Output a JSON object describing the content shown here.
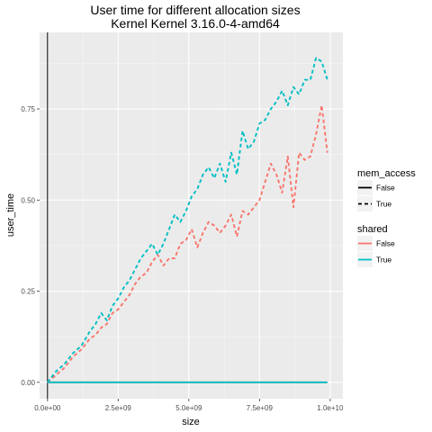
{
  "chart_data": {
    "type": "line",
    "title": "User time for different allocation sizes",
    "subtitle": "Kernel Kernel 3.16.0-4-amd64",
    "xlabel": "size",
    "ylabel": "user_time",
    "xlim": [
      -280000000.0,
      10450000000.0
    ],
    "ylim": [
      -0.045,
      0.96
    ],
    "x_ticks": [
      0,
      2500000000,
      5000000000,
      7500000000,
      10000000000
    ],
    "x_tick_labels": [
      "0.0e+00",
      "2.5e+09",
      "5.0e+09",
      "7.5e+09",
      "1.0e+10"
    ],
    "y_ticks": [
      0,
      0.25,
      0.5,
      0.75
    ],
    "y_tick_labels": [
      "0.00",
      "0.25",
      "0.50",
      "0.75"
    ],
    "grid": true,
    "legend_position": "right",
    "legends": [
      {
        "title": "mem_access",
        "entries": [
          {
            "label": "False",
            "linetype": "solid"
          },
          {
            "label": "True",
            "linetype": "dashed"
          }
        ]
      },
      {
        "title": "shared",
        "entries": [
          {
            "label": "False",
            "color": "#F8766D"
          },
          {
            "label": "True",
            "color": "#00BFC4"
          }
        ]
      }
    ],
    "series": [
      {
        "mem_access": "False",
        "shared": "False",
        "color": "#F8766D",
        "linetype": "solid",
        "x": [
          0,
          9900000000
        ],
        "y": [
          0,
          0
        ]
      },
      {
        "mem_access": "False",
        "shared": "True",
        "color": "#00BFC4",
        "linetype": "solid",
        "x": [
          0,
          9900000000
        ],
        "y": [
          0,
          0
        ]
      },
      {
        "mem_access": "True",
        "shared": "False",
        "color": "#F8766D",
        "linetype": "dashed",
        "x": [
          0,
          300000000,
          600000000,
          900000000,
          1200000000,
          1500000000,
          1700000000,
          1900000000,
          2100000000,
          2300000000,
          2500000000,
          2700000000,
          2900000000,
          3100000000,
          3300000000,
          3500000000,
          3700000000,
          3900000000,
          4100000000,
          4300000000,
          4500000000,
          4700000000,
          4900000000,
          5100000000,
          5300000000,
          5500000000,
          5700000000,
          5900000000,
          6100000000,
          6300000000,
          6500000000,
          6700000000,
          6900000000,
          7100000000,
          7300000000,
          7500000000,
          7700000000,
          7900000000,
          8100000000,
          8300000000,
          8500000000,
          8700000000,
          8900000000,
          9100000000,
          9300000000,
          9500000000,
          9700000000,
          9900000000
        ],
        "y": [
          0,
          0.02,
          0.04,
          0.07,
          0.09,
          0.12,
          0.13,
          0.15,
          0.16,
          0.19,
          0.2,
          0.22,
          0.24,
          0.27,
          0.29,
          0.3,
          0.33,
          0.35,
          0.32,
          0.34,
          0.34,
          0.38,
          0.39,
          0.42,
          0.37,
          0.41,
          0.44,
          0.43,
          0.41,
          0.43,
          0.46,
          0.4,
          0.47,
          0.46,
          0.48,
          0.5,
          0.55,
          0.6,
          0.57,
          0.52,
          0.62,
          0.48,
          0.63,
          0.61,
          0.62,
          0.68,
          0.76,
          0.63
        ]
      },
      {
        "mem_access": "True",
        "shared": "True",
        "color": "#00BFC4",
        "linetype": "dashed",
        "x": [
          0,
          300000000,
          600000000,
          900000000,
          1200000000,
          1500000000,
          1700000000,
          1900000000,
          2100000000,
          2300000000,
          2500000000,
          2700000000,
          2900000000,
          3100000000,
          3300000000,
          3500000000,
          3700000000,
          3900000000,
          4100000000,
          4300000000,
          4500000000,
          4700000000,
          4900000000,
          5100000000,
          5300000000,
          5500000000,
          5700000000,
          5900000000,
          6100000000,
          6300000000,
          6500000000,
          6700000000,
          6900000000,
          7100000000,
          7300000000,
          7500000000,
          7700000000,
          7900000000,
          8100000000,
          8300000000,
          8500000000,
          8700000000,
          8900000000,
          9100000000,
          9300000000,
          9500000000,
          9700000000,
          9900000000
        ],
        "y": [
          0,
          0.03,
          0.05,
          0.08,
          0.1,
          0.14,
          0.16,
          0.19,
          0.17,
          0.21,
          0.23,
          0.26,
          0.28,
          0.31,
          0.34,
          0.36,
          0.38,
          0.35,
          0.38,
          0.42,
          0.46,
          0.44,
          0.47,
          0.51,
          0.53,
          0.57,
          0.59,
          0.56,
          0.6,
          0.55,
          0.63,
          0.57,
          0.69,
          0.64,
          0.66,
          0.71,
          0.72,
          0.75,
          0.77,
          0.8,
          0.76,
          0.81,
          0.79,
          0.83,
          0.83,
          0.89,
          0.88,
          0.83
        ]
      }
    ]
  }
}
